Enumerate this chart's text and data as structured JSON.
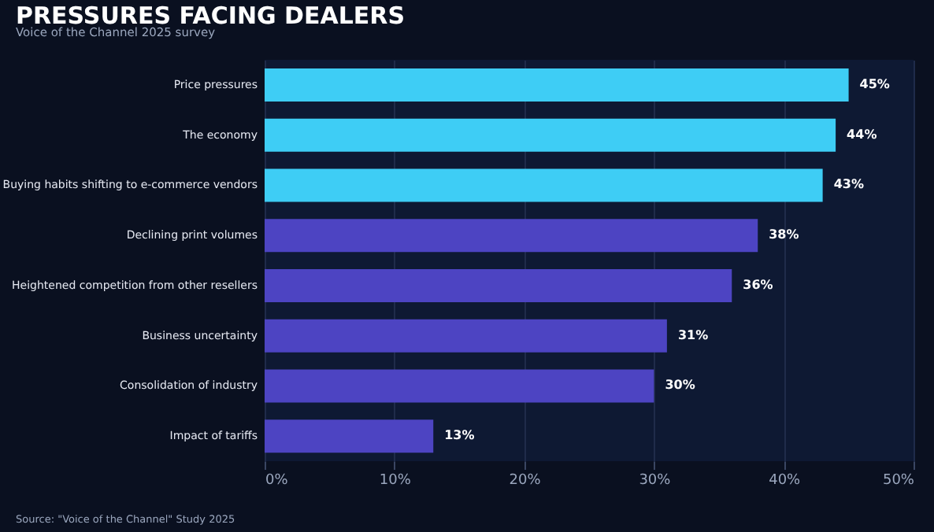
{
  "chart_data": {
    "type": "bar",
    "orientation": "horizontal",
    "title": "PRESSURES FACING DEALERS",
    "subtitle": "Voice of the Channel 2025 survey",
    "categories": [
      "Price pressures",
      "The economy",
      "Buying habits shifting to e-commerce vendors",
      "Declining print volumes",
      "Heightened competition from other resellers",
      "Business uncertainty",
      "Consolidation of industry",
      "Impact of tariffs"
    ],
    "values": [
      45,
      44,
      43,
      38,
      36,
      31,
      30,
      13
    ],
    "colors": [
      "#3ecdf5",
      "#3ecdf5",
      "#3ecdf5",
      "#4d44c2",
      "#4d44c2",
      "#4d44c2",
      "#4d44c2",
      "#4d44c2"
    ],
    "value_labels": [
      "45%",
      "44%",
      "43%",
      "38%",
      "36%",
      "31%",
      "30%",
      "13%"
    ],
    "xlim": [
      0,
      50
    ],
    "xticks": [
      {
        "value": 0,
        "label": "0%"
      },
      {
        "value": 10,
        "label": "10%"
      },
      {
        "value": 20,
        "label": "20%"
      },
      {
        "value": 30,
        "label": "30%"
      },
      {
        "value": 40,
        "label": "40%"
      },
      {
        "value": 50,
        "label": "50%"
      }
    ],
    "grid": "x",
    "annotations": [
      "Source: \"Voice of the Channel\" Study 2025"
    ]
  }
}
